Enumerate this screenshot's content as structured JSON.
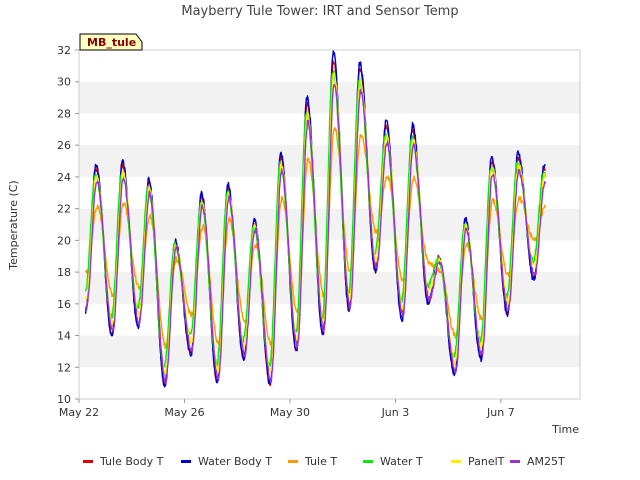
{
  "chart_data": {
    "type": "line",
    "title": "Mayberry Tule Tower: IRT and Sensor Temp",
    "xlabel": "Time",
    "ylabel": "Temperature (C)",
    "ylim": [
      10,
      32
    ],
    "yticks": [
      10,
      12,
      14,
      16,
      18,
      20,
      22,
      24,
      26,
      28,
      30,
      32
    ],
    "xlim": [
      "2022-05-22",
      "2022-06-10"
    ],
    "xticks": [
      {
        "date": "2022-05-22",
        "label": "May 22"
      },
      {
        "date": "2022-05-26",
        "label": "May 26"
      },
      {
        "date": "2022-05-30",
        "label": "May 30"
      },
      {
        "date": "2022-06-03",
        "label": "Jun 3"
      },
      {
        "date": "2022-06-07",
        "label": "Jun 7"
      }
    ],
    "grid": "horizontal alternating bands",
    "legend": "bottom",
    "site_label": "MB_tule",
    "daily_extremes_water_body": [
      {
        "date": "2022-05-22",
        "min": 15.5,
        "max": 24.8
      },
      {
        "date": "2022-05-23",
        "min": 14.0,
        "max": 25.0
      },
      {
        "date": "2022-05-24",
        "min": 14.5,
        "max": 23.9
      },
      {
        "date": "2022-05-25",
        "min": 10.8,
        "max": 20.0
      },
      {
        "date": "2022-05-26",
        "min": 12.8,
        "max": 23.0
      },
      {
        "date": "2022-05-27",
        "min": 11.0,
        "max": 23.6
      },
      {
        "date": "2022-05-28",
        "min": 12.5,
        "max": 21.3
      },
      {
        "date": "2022-05-29",
        "min": 10.9,
        "max": 25.5
      },
      {
        "date": "2022-05-30",
        "min": 13.0,
        "max": 29.0
      },
      {
        "date": "2022-05-31",
        "min": 14.0,
        "max": 31.8
      },
      {
        "date": "2022-06-01",
        "min": 15.5,
        "max": 31.2
      },
      {
        "date": "2022-06-02",
        "min": 18.0,
        "max": 27.5
      },
      {
        "date": "2022-06-03",
        "min": 15.0,
        "max": 27.3
      },
      {
        "date": "2022-06-04",
        "min": 16.0,
        "max": 19.0
      },
      {
        "date": "2022-06-05",
        "min": 11.5,
        "max": 21.4
      },
      {
        "date": "2022-06-06",
        "min": 12.5,
        "max": 25.3
      },
      {
        "date": "2022-06-07",
        "min": 15.3,
        "max": 25.5
      },
      {
        "date": "2022-06-08",
        "min": 17.5,
        "max": 24.8
      }
    ],
    "series": [
      {
        "name": "Tule Body T",
        "color": "#dd0000",
        "max_scale": 0.97,
        "min_offset": 0.1,
        "mean_pull": 0.0,
        "phase_shift": 0.0
      },
      {
        "name": "Water Body T",
        "color": "#0000cc",
        "max_scale": 1.0,
        "min_offset": 0.0,
        "mean_pull": 0.0,
        "phase_shift": 0.0
      },
      {
        "name": "Tule T",
        "color": "#ff9900",
        "max_scale": 0.7,
        "min_offset": 2.5,
        "mean_pull": 0.0,
        "phase_shift": 0.04
      },
      {
        "name": "Water T",
        "color": "#00ee00",
        "max_scale": 0.93,
        "min_offset": 1.2,
        "mean_pull": 0.0,
        "phase_shift": -0.02
      },
      {
        "name": "PanelT",
        "color": "#ffee00",
        "max_scale": 0.92,
        "min_offset": 0.8,
        "mean_pull": 0.0,
        "phase_shift": 0.02
      },
      {
        "name": "AM25T",
        "color": "#9933cc",
        "max_scale": 0.88,
        "min_offset": 0.3,
        "mean_pull": 0.0,
        "phase_shift": 0.03
      }
    ]
  }
}
